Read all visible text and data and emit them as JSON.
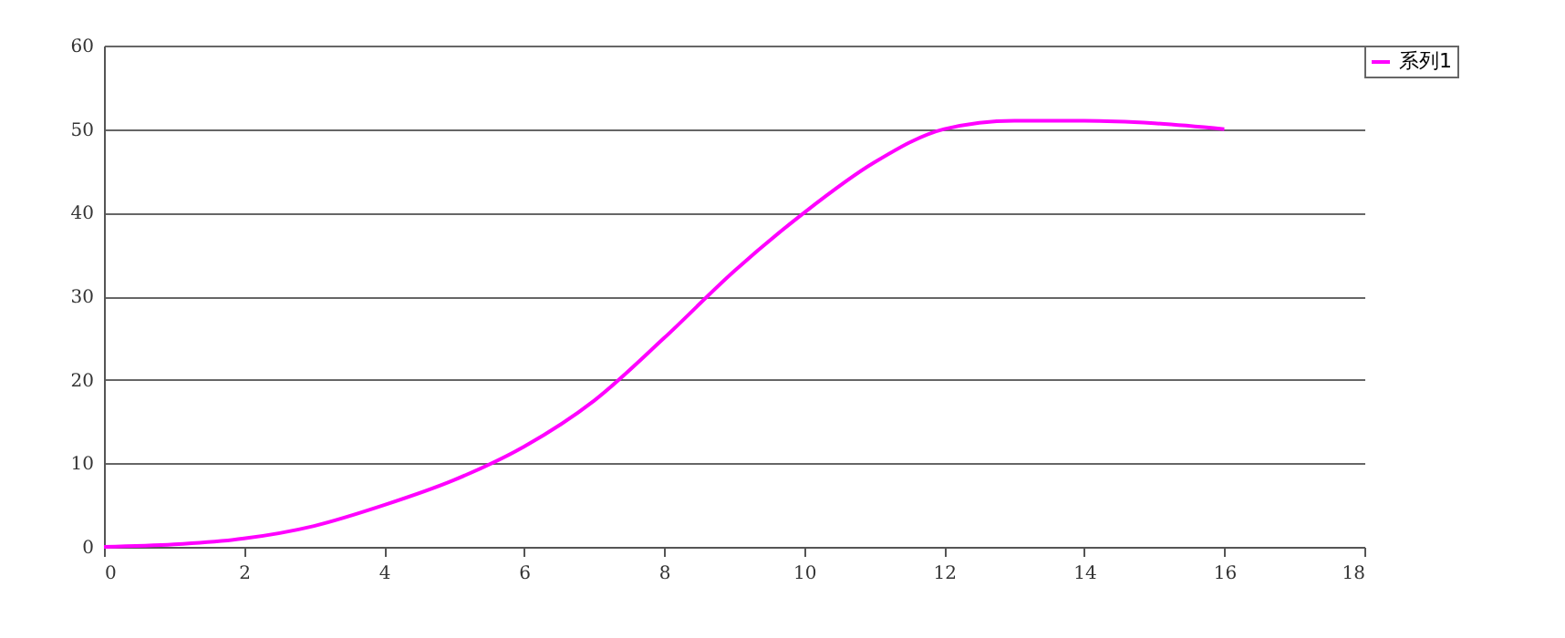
{
  "chart_data": {
    "type": "line",
    "x": [
      0,
      1,
      2,
      3,
      4,
      5,
      6,
      7,
      8,
      9,
      10,
      11,
      12,
      13,
      14,
      15,
      16
    ],
    "series": [
      {
        "name": "系列1",
        "color": "#ff00ff",
        "values": [
          0,
          0.3,
          1,
          2.5,
          5,
          8,
          12,
          17.5,
          25,
          33,
          40,
          46,
          50,
          51,
          51,
          50.7,
          50
        ]
      }
    ],
    "xlim": [
      0,
      18
    ],
    "xticks": [
      0,
      2,
      4,
      6,
      8,
      10,
      12,
      14,
      16,
      18
    ],
    "ylim": [
      0,
      60
    ],
    "yticks": [
      0,
      10,
      20,
      30,
      40,
      50,
      60
    ],
    "grid": "y",
    "legend": "right",
    "marker": "none",
    "line_style": "solid"
  }
}
